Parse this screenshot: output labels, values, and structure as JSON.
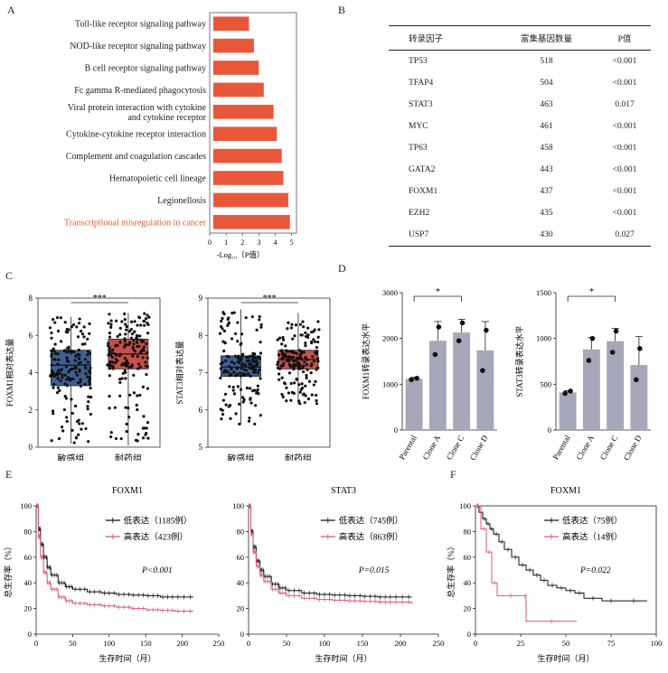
{
  "panel_labels": {
    "A": "A",
    "B": "B",
    "C": "C",
    "D": "D",
    "E": "E",
    "F": "F"
  },
  "colors": {
    "bar": "#e8573a",
    "box_blue": "#3f5f93",
    "box_red": "#c8504a",
    "gray_bar": "#a6a7b8",
    "km_low": "#111111",
    "km_high": "#d4577a"
  },
  "table_B": {
    "headers": [
      "转录因子",
      "富集基因数量",
      "P值"
    ],
    "rows": [
      [
        "TP53",
        "518",
        "<0.001"
      ],
      [
        "TFAP4",
        "504",
        "<0.001"
      ],
      [
        "STAT3",
        "463",
        "0.017"
      ],
      [
        "MYC",
        "461",
        "<0.001"
      ],
      [
        "TP63",
        "458",
        "<0.001"
      ],
      [
        "GATA2",
        "443",
        "<0.001"
      ],
      [
        "FOXM1",
        "437",
        "<0.001"
      ],
      [
        "EZH2",
        "435",
        "<0.001"
      ],
      [
        "USP7",
        "430",
        "0.027"
      ]
    ]
  },
  "chart_data": [
    {
      "id": "A",
      "type": "bar",
      "orientation": "horizontal",
      "categories": [
        "Toll-like receptor signaling pathway",
        "NOD-like receptor signaling pathway",
        "B cell receptor signaling pathway",
        "Fc gamma R-mediated phagocytosis",
        "Viral protein interaction with cytokine and cytokine receptor",
        "Cytokine-cytokine receptor interaction",
        "Complement and coagulation cascades",
        "Hematopoietic cell lineage",
        "Legionellosis",
        "Transcriptional misregulation in cancer"
      ],
      "category_lines": [
        [
          "Toll-like receptor signaling pathway"
        ],
        [
          "NOD-like receptor signaling pathway"
        ],
        [
          "B cell receptor signaling pathway"
        ],
        [
          "Fc gamma R-mediated phagocytosis"
        ],
        [
          "Viral protein interaction with cytokine",
          "and cytokine receptor"
        ],
        [
          "Cytokine-cytokine receptor interaction"
        ],
        [
          "Complement and coagulation cascades"
        ],
        [
          "Hematopoietic cell lineage"
        ],
        [
          "Legionellosis"
        ],
        [
          "Transcriptional misregulation in cancer"
        ]
      ],
      "highlight_index": 9,
      "values": [
        2.4,
        2.7,
        3.0,
        3.3,
        3.9,
        4.1,
        4.4,
        4.5,
        4.8,
        4.9
      ],
      "xticks": [
        "0",
        "1",
        "2",
        "3",
        "4",
        "5"
      ],
      "xlim": [
        0,
        5.3
      ],
      "xlabel": "-Log₁₀（P值）"
    },
    {
      "id": "C1",
      "type": "box",
      "ylabel": "FOXM1相对表达量",
      "categories": [
        "敏感组",
        "耐药组"
      ],
      "groups": [
        {
          "q1": 3.3,
          "median": 4.4,
          "q3": 5.2,
          "min": 0.2,
          "max": 7.0
        },
        {
          "q1": 4.2,
          "median": 5.0,
          "q3": 5.8,
          "min": 0.1,
          "max": 7.2
        }
      ],
      "ylim": [
        0,
        8
      ],
      "yticks": [
        "0",
        "2",
        "4",
        "6",
        "8"
      ],
      "significance": "***"
    },
    {
      "id": "C2",
      "type": "box",
      "ylabel": "STAT3相对表达量",
      "categories": [
        "敏感组",
        "耐药组"
      ],
      "groups": [
        {
          "q1": 6.9,
          "median": 7.15,
          "q3": 7.45,
          "min": 5.6,
          "max": 8.7
        },
        {
          "q1": 7.1,
          "median": 7.35,
          "q3": 7.6,
          "min": 6.15,
          "max": 8.6
        }
      ],
      "ylim": [
        5,
        9
      ],
      "yticks": [
        "5",
        "6",
        "7",
        "8",
        "9"
      ],
      "significance": "***"
    },
    {
      "id": "D1",
      "type": "bar",
      "ylabel": "FOXM1转录表达水平",
      "categories": [
        "Parental",
        "Clone A",
        "Clone C",
        "Clone D"
      ],
      "values": [
        1120,
        1950,
        2130,
        1740
      ],
      "errors": [
        30,
        420,
        290,
        630
      ],
      "points": [
        [
          1100,
          1130
        ],
        [
          1650,
          2250
        ],
        [
          1950,
          2340
        ],
        [
          1300,
          2180
        ]
      ],
      "ylim": [
        0,
        3000
      ],
      "yticks": [
        "0",
        "1000",
        "2000",
        "3000"
      ],
      "significance": "*"
    },
    {
      "id": "D2",
      "type": "bar",
      "ylabel": "STAT3转录表达水平",
      "categories": [
        "Parental",
        "Clone A",
        "Clone C",
        "Clone D"
      ],
      "values": [
        410,
        880,
        970,
        710
      ],
      "errors": [
        20,
        130,
        140,
        310
      ],
      "points": [
        [
          400,
          425
        ],
        [
          760,
          1000
        ],
        [
          850,
          1080
        ],
        [
          550,
          890
        ]
      ],
      "ylim": [
        0,
        1500
      ],
      "yticks": [
        "0",
        "500",
        "1000",
        "1500"
      ],
      "significance": "*"
    },
    {
      "id": "E1",
      "type": "line",
      "title": "FOXM1",
      "xlabel": "生存时间（月）",
      "ylabel": "总生存率（%）",
      "xticks": [
        "0",
        "50",
        "100",
        "150",
        "200",
        "250"
      ],
      "xlim": [
        0,
        250
      ],
      "yticks": [
        "0",
        "20",
        "40",
        "60",
        "80",
        "100"
      ],
      "ylim": [
        0,
        100
      ],
      "pvalue": "P<0.001",
      "series": [
        {
          "name": "低表达（1185例）",
          "x": [
            0,
            3,
            6,
            10,
            15,
            20,
            30,
            40,
            50,
            70,
            90,
            110,
            130,
            150,
            170,
            190,
            215
          ],
          "y": [
            100,
            82,
            70,
            60,
            52,
            46,
            40,
            37,
            35,
            33,
            32,
            31,
            30.5,
            30,
            29,
            29,
            29
          ]
        },
        {
          "name": "高表达（423例）",
          "x": [
            0,
            3,
            6,
            10,
            15,
            20,
            30,
            40,
            50,
            70,
            90,
            110,
            130,
            150,
            170,
            190,
            215
          ],
          "y": [
            100,
            76,
            60,
            48,
            40,
            35,
            29,
            26,
            24,
            23,
            22,
            21,
            20,
            19,
            18.5,
            18,
            18
          ]
        }
      ]
    },
    {
      "id": "E2",
      "type": "line",
      "title": "STAT3",
      "xlabel": "生存时间（月）",
      "ylabel": "",
      "xticks": [
        "0",
        "50",
        "100",
        "150",
        "200",
        "250"
      ],
      "xlim": [
        0,
        250
      ],
      "yticks": [
        "0",
        "20",
        "40",
        "60",
        "80",
        "100"
      ],
      "ylim": [
        0,
        100
      ],
      "pvalue": "P=0.015",
      "series": [
        {
          "name": "低表达（745例）",
          "x": [
            0,
            3,
            6,
            10,
            15,
            20,
            30,
            40,
            50,
            70,
            90,
            110,
            130,
            150,
            170,
            190,
            215
          ],
          "y": [
            100,
            80,
            68,
            57,
            50,
            45,
            39,
            36,
            34,
            32,
            31,
            30.5,
            30,
            29.5,
            29,
            29,
            29
          ]
        },
        {
          "name": "高表达（863例）",
          "x": [
            0,
            3,
            6,
            10,
            15,
            20,
            30,
            40,
            50,
            70,
            90,
            110,
            130,
            150,
            170,
            190,
            215
          ],
          "y": [
            100,
            78,
            64,
            53,
            46,
            41,
            35,
            32,
            30,
            28,
            27,
            26.5,
            26,
            25.5,
            25,
            25,
            24
          ]
        }
      ]
    },
    {
      "id": "F",
      "type": "line",
      "title": "FOXM1",
      "xlabel": "生存时间（月）",
      "ylabel": "总生存率（%）",
      "xticks": [
        "0",
        "25",
        "50",
        "75",
        "100"
      ],
      "xlim": [
        0,
        100
      ],
      "yticks": [
        "0",
        "20",
        "40",
        "60",
        "80",
        "100"
      ],
      "ylim": [
        0,
        100
      ],
      "pvalue": "P=0.022",
      "series": [
        {
          "name": "低表达（75例）",
          "x": [
            0,
            2,
            4,
            6,
            8,
            10,
            13,
            16,
            20,
            24,
            28,
            32,
            36,
            40,
            45,
            50,
            55,
            60,
            70,
            80,
            95
          ],
          "y": [
            100,
            95,
            90,
            86,
            82,
            78,
            72,
            66,
            60,
            54,
            50,
            46,
            42,
            38,
            36,
            34,
            32,
            28,
            26,
            26,
            26
          ]
        },
        {
          "name": "高表达（14例）",
          "x": [
            0,
            3,
            6,
            9,
            12,
            27,
            28,
            56
          ],
          "y": [
            100,
            82,
            64,
            40,
            30,
            30,
            10,
            10
          ]
        }
      ]
    }
  ]
}
